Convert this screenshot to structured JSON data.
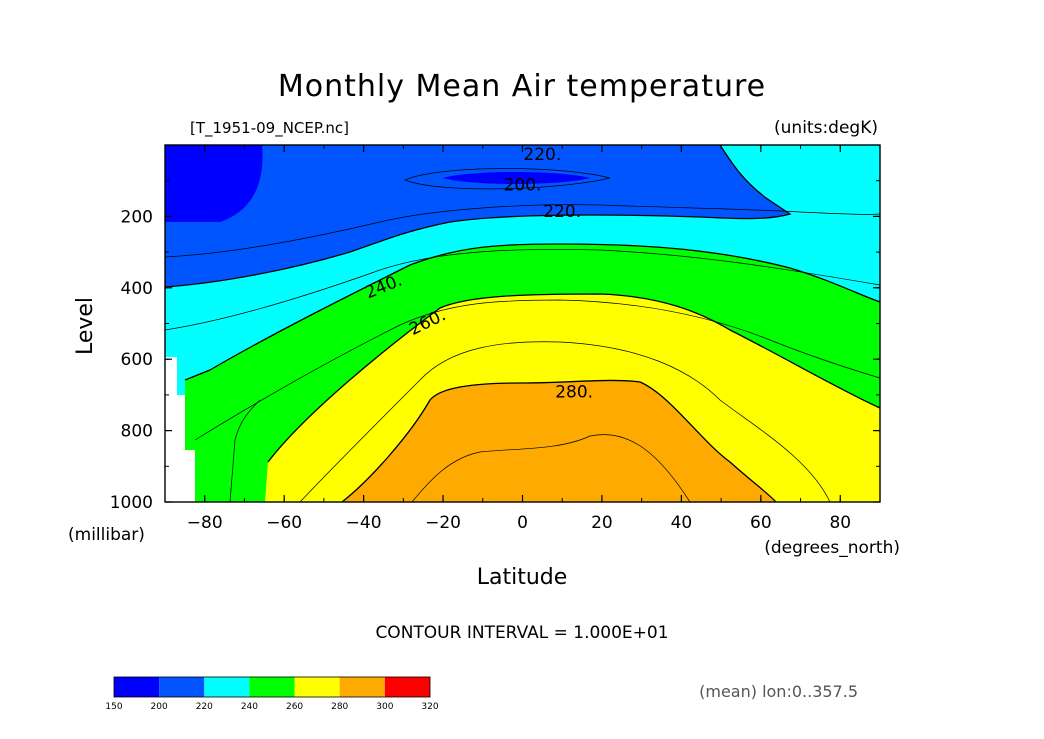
{
  "chart_data": {
    "type": "contour",
    "title": "Monthly Mean Air temperature",
    "file_label": "[T_1951-09_NCEP.nc]",
    "units_label": "(units:degK)",
    "xlabel": "Latitude",
    "x_units": "(degrees_north)",
    "ylabel": "Level",
    "y_units": "(millibar)",
    "xlim": [
      -90,
      90
    ],
    "ylim": [
      1000,
      0
    ],
    "x_ticks": [
      -80,
      -60,
      -40,
      -20,
      0,
      20,
      40,
      60,
      80
    ],
    "x_tick_labels": [
      "−80",
      "−60",
      "−40",
      "−20",
      "0",
      "20",
      "40",
      "60",
      "80"
    ],
    "y_ticks": [
      200,
      400,
      600,
      800,
      1000
    ],
    "y_tick_labels": [
      "200",
      "400",
      "600",
      "800",
      "1000"
    ],
    "contour_interval_text": "CONTOUR INTERVAL = 1.000E+01",
    "averaging_note": "(mean) lon:0..357.5",
    "contour_labels": [
      {
        "text": "220.",
        "x": 5,
        "y": 25
      },
      {
        "text": "200.",
        "x": 0,
        "y": 110
      },
      {
        "text": "220.",
        "x": 10,
        "y": 185
      },
      {
        "text": "240.",
        "x": -35,
        "y": 395
      },
      {
        "text": "260.",
        "x": -24,
        "y": 495
      },
      {
        "text": "280.",
        "x": 13,
        "y": 690
      }
    ],
    "colorbar": {
      "levels": [
        150,
        200,
        220,
        240,
        260,
        280,
        300,
        320
      ],
      "level_labels": [
        "150",
        "200",
        "220",
        "240",
        "260",
        "280",
        "300",
        "320"
      ],
      "colors": [
        "#0000ff",
        "#0055ff",
        "#00ffff",
        "#00ff00",
        "#ffff00",
        "#ffaa00",
        "#ff0000"
      ]
    }
  }
}
